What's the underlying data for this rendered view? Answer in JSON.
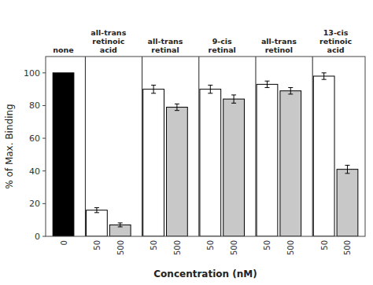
{
  "chart_data": {
    "type": "bar",
    "xlabel": "Concentration (nM)",
    "ylabel": "% of Max. Binding",
    "ylim": [
      0,
      110
    ],
    "yticks": [
      0,
      20,
      40,
      60,
      80,
      100
    ],
    "groups": [
      {
        "name": "none",
        "categories": [
          "0"
        ],
        "values": [
          100
        ],
        "colors": [
          "#000000"
        ]
      },
      {
        "name": "all-trans\nretinoic\nacid",
        "categories": [
          "50",
          "500"
        ],
        "values": [
          16,
          7
        ],
        "errors": [
          1.5,
          1.2
        ],
        "colors": [
          "#ffffff",
          "#c8c8c8"
        ]
      },
      {
        "name": "all-trans\nretinal",
        "categories": [
          "50",
          "500"
        ],
        "values": [
          90,
          79
        ],
        "errors": [
          2.5,
          2.0
        ],
        "colors": [
          "#ffffff",
          "#c8c8c8"
        ]
      },
      {
        "name": "9-cis\nretinal",
        "categories": [
          "50",
          "500"
        ],
        "values": [
          90,
          84
        ],
        "errors": [
          2.5,
          2.5
        ],
        "colors": [
          "#ffffff",
          "#c8c8c8"
        ]
      },
      {
        "name": "all-trans\nretinol",
        "categories": [
          "50",
          "500"
        ],
        "values": [
          93,
          89
        ],
        "errors": [
          2.0,
          2.0
        ],
        "colors": [
          "#ffffff",
          "#c8c8c8"
        ]
      },
      {
        "name": "13-cis\nretinoic\nacid",
        "categories": [
          "50",
          "500"
        ],
        "values": [
          98,
          41
        ],
        "errors": [
          2.0,
          2.5
        ],
        "colors": [
          "#ffffff",
          "#c8c8c8"
        ]
      }
    ]
  }
}
